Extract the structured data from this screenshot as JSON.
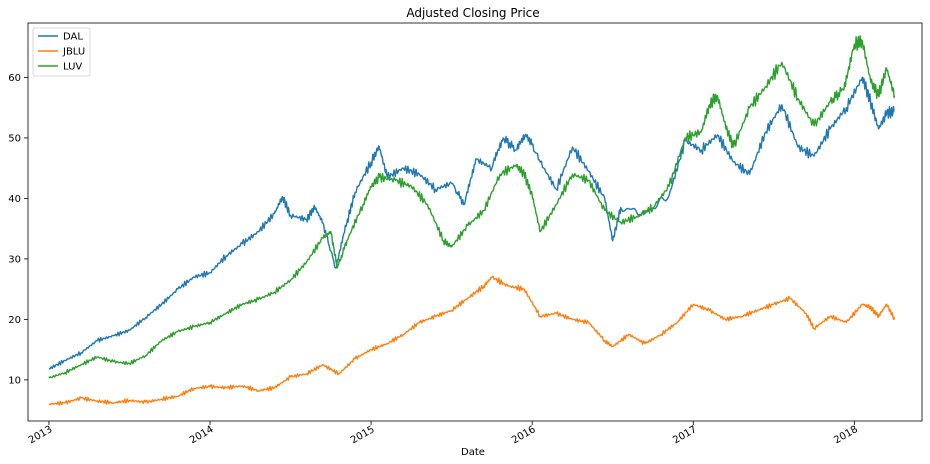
{
  "chart_data": {
    "type": "line",
    "title": "Adjusted Closing Price",
    "xlabel": "Date",
    "ylabel": "",
    "xlim": [
      2012.87,
      2018.42
    ],
    "ylim": [
      3.2,
      69
    ],
    "x_ticks": [
      2013,
      2014,
      2015,
      2016,
      2017,
      2018
    ],
    "x_tick_labels": [
      "2013",
      "2014",
      "2015",
      "2016",
      "2017",
      "2018"
    ],
    "y_ticks": [
      10,
      20,
      30,
      40,
      50,
      60
    ],
    "y_tick_labels": [
      "10",
      "20",
      "30",
      "40",
      "50",
      "60"
    ],
    "grid": false,
    "legend_position": "top-left",
    "series": [
      {
        "name": "DAL",
        "color": "#1f77b4",
        "points": [
          [
            2013.0,
            11.8
          ],
          [
            2013.1,
            13.2
          ],
          [
            2013.2,
            14.5
          ],
          [
            2013.3,
            16.5
          ],
          [
            2013.4,
            17.3
          ],
          [
            2013.5,
            18.2
          ],
          [
            2013.6,
            20.3
          ],
          [
            2013.7,
            22.5
          ],
          [
            2013.8,
            25.0
          ],
          [
            2013.9,
            27.0
          ],
          [
            2014.0,
            27.7
          ],
          [
            2014.1,
            30.5
          ],
          [
            2014.2,
            32.5
          ],
          [
            2014.3,
            34.5
          ],
          [
            2014.4,
            37.5
          ],
          [
            2014.45,
            40.3
          ],
          [
            2014.5,
            37.2
          ],
          [
            2014.6,
            36.5
          ],
          [
            2014.65,
            38.6
          ],
          [
            2014.7,
            36.0
          ],
          [
            2014.78,
            28.5
          ],
          [
            2014.85,
            36.0
          ],
          [
            2014.9,
            41.0
          ],
          [
            2015.0,
            46.0
          ],
          [
            2015.05,
            48.6
          ],
          [
            2015.1,
            43.5
          ],
          [
            2015.2,
            45.0
          ],
          [
            2015.3,
            44.0
          ],
          [
            2015.4,
            41.5
          ],
          [
            2015.5,
            42.5
          ],
          [
            2015.58,
            39.0
          ],
          [
            2015.65,
            46.5
          ],
          [
            2015.75,
            45.0
          ],
          [
            2015.82,
            50.0
          ],
          [
            2015.9,
            48.0
          ],
          [
            2015.97,
            50.5
          ],
          [
            2016.05,
            46.0
          ],
          [
            2016.15,
            41.5
          ],
          [
            2016.25,
            48.5
          ],
          [
            2016.35,
            44.5
          ],
          [
            2016.45,
            40.0
          ],
          [
            2016.5,
            33.0
          ],
          [
            2016.55,
            38.5
          ],
          [
            2016.7,
            37.5
          ],
          [
            2016.85,
            40.5
          ],
          [
            2016.95,
            49.5
          ],
          [
            2017.05,
            48.0
          ],
          [
            2017.15,
            50.5
          ],
          [
            2017.25,
            46.0
          ],
          [
            2017.35,
            44.0
          ],
          [
            2017.45,
            51.0
          ],
          [
            2017.55,
            55.5
          ],
          [
            2017.65,
            48.5
          ],
          [
            2017.75,
            47.0
          ],
          [
            2017.85,
            51.5
          ],
          [
            2017.95,
            55.0
          ],
          [
            2018.05,
            60.0
          ],
          [
            2018.1,
            56.0
          ],
          [
            2018.15,
            51.5
          ],
          [
            2018.2,
            54.0
          ],
          [
            2018.25,
            54.5
          ]
        ]
      },
      {
        "name": "JBLU",
        "color": "#ff7f0e",
        "points": [
          [
            2013.0,
            6.0
          ],
          [
            2013.1,
            6.2
          ],
          [
            2013.2,
            7.0
          ],
          [
            2013.3,
            6.5
          ],
          [
            2013.4,
            6.2
          ],
          [
            2013.5,
            6.6
          ],
          [
            2013.6,
            6.3
          ],
          [
            2013.7,
            6.8
          ],
          [
            2013.8,
            7.3
          ],
          [
            2013.9,
            8.6
          ],
          [
            2014.0,
            8.9
          ],
          [
            2014.1,
            8.7
          ],
          [
            2014.2,
            9.0
          ],
          [
            2014.3,
            8.2
          ],
          [
            2014.4,
            8.7
          ],
          [
            2014.5,
            10.5
          ],
          [
            2014.6,
            11.0
          ],
          [
            2014.7,
            12.5
          ],
          [
            2014.8,
            11.0
          ],
          [
            2014.9,
            13.5
          ],
          [
            2015.0,
            15.0
          ],
          [
            2015.1,
            16.0
          ],
          [
            2015.2,
            17.5
          ],
          [
            2015.3,
            19.5
          ],
          [
            2015.4,
            20.5
          ],
          [
            2015.5,
            21.5
          ],
          [
            2015.6,
            23.5
          ],
          [
            2015.7,
            25.5
          ],
          [
            2015.75,
            27.0
          ],
          [
            2015.85,
            25.5
          ],
          [
            2015.95,
            25.0
          ],
          [
            2016.05,
            20.5
          ],
          [
            2016.15,
            21.0
          ],
          [
            2016.25,
            20.0
          ],
          [
            2016.35,
            19.5
          ],
          [
            2016.45,
            16.5
          ],
          [
            2016.5,
            15.5
          ],
          [
            2016.6,
            17.5
          ],
          [
            2016.7,
            16.0
          ],
          [
            2016.8,
            17.5
          ],
          [
            2016.9,
            19.5
          ],
          [
            2017.0,
            22.5
          ],
          [
            2017.1,
            21.5
          ],
          [
            2017.2,
            20.0
          ],
          [
            2017.3,
            20.5
          ],
          [
            2017.4,
            21.5
          ],
          [
            2017.5,
            22.5
          ],
          [
            2017.6,
            23.5
          ],
          [
            2017.7,
            21.0
          ],
          [
            2017.75,
            18.5
          ],
          [
            2017.85,
            20.5
          ],
          [
            2017.95,
            19.5
          ],
          [
            2018.05,
            22.5
          ],
          [
            2018.1,
            22.0
          ],
          [
            2018.15,
            20.5
          ],
          [
            2018.2,
            22.5
          ],
          [
            2018.25,
            20.0
          ]
        ]
      },
      {
        "name": "LUV",
        "color": "#2ca02c",
        "points": [
          [
            2013.0,
            10.3
          ],
          [
            2013.1,
            11.2
          ],
          [
            2013.2,
            12.5
          ],
          [
            2013.3,
            13.8
          ],
          [
            2013.4,
            13.0
          ],
          [
            2013.5,
            12.7
          ],
          [
            2013.6,
            14.0
          ],
          [
            2013.7,
            16.5
          ],
          [
            2013.8,
            18.0
          ],
          [
            2013.9,
            18.8
          ],
          [
            2014.0,
            19.5
          ],
          [
            2014.1,
            21.0
          ],
          [
            2014.2,
            22.5
          ],
          [
            2014.3,
            23.3
          ],
          [
            2014.4,
            24.5
          ],
          [
            2014.5,
            26.5
          ],
          [
            2014.6,
            29.5
          ],
          [
            2014.7,
            33.5
          ],
          [
            2014.75,
            34.5
          ],
          [
            2014.79,
            28.5
          ],
          [
            2014.85,
            33.0
          ],
          [
            2014.95,
            39.0
          ],
          [
            2015.0,
            42.0
          ],
          [
            2015.05,
            43.5
          ],
          [
            2015.15,
            43.0
          ],
          [
            2015.25,
            42.0
          ],
          [
            2015.35,
            39.0
          ],
          [
            2015.45,
            33.0
          ],
          [
            2015.5,
            32.0
          ],
          [
            2015.6,
            35.5
          ],
          [
            2015.7,
            38.0
          ],
          [
            2015.8,
            44.0
          ],
          [
            2015.9,
            45.5
          ],
          [
            2015.95,
            44.0
          ],
          [
            2016.0,
            40.5
          ],
          [
            2016.05,
            34.5
          ],
          [
            2016.15,
            39.0
          ],
          [
            2016.25,
            44.0
          ],
          [
            2016.35,
            43.0
          ],
          [
            2016.45,
            38.0
          ],
          [
            2016.55,
            36.0
          ],
          [
            2016.65,
            37.0
          ],
          [
            2016.75,
            38.5
          ],
          [
            2016.85,
            42.0
          ],
          [
            2016.95,
            50.0
          ],
          [
            2017.05,
            51.0
          ],
          [
            2017.1,
            55.5
          ],
          [
            2017.15,
            57.0
          ],
          [
            2017.2,
            52.0
          ],
          [
            2017.25,
            48.5
          ],
          [
            2017.35,
            55.0
          ],
          [
            2017.45,
            58.5
          ],
          [
            2017.55,
            62.5
          ],
          [
            2017.65,
            56.5
          ],
          [
            2017.75,
            52.0
          ],
          [
            2017.85,
            56.0
          ],
          [
            2017.93,
            58.0
          ],
          [
            2018.0,
            65.5
          ],
          [
            2018.05,
            66.0
          ],
          [
            2018.1,
            59.5
          ],
          [
            2018.15,
            57.0
          ],
          [
            2018.2,
            61.5
          ],
          [
            2018.25,
            57.0
          ]
        ]
      }
    ]
  }
}
